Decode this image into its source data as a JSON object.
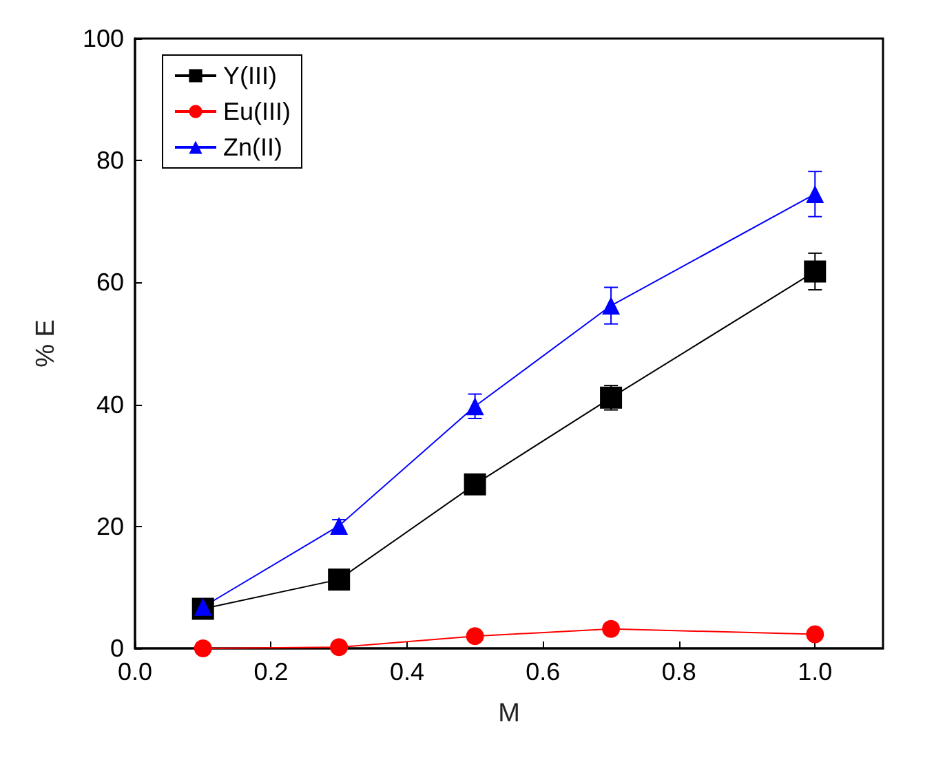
{
  "chart_data": {
    "type": "line",
    "xlabel": "M",
    "ylabel": "% E",
    "x": [
      0.1,
      0.3,
      0.5,
      0.7,
      1.0
    ],
    "series": [
      {
        "name": "Y(III)",
        "color": "#000000",
        "marker": "square",
        "values": [
          6.5,
          11.3,
          26.9,
          41.1,
          61.8
        ],
        "errors": [
          null,
          null,
          null,
          2,
          3
        ]
      },
      {
        "name": "Eu(III)",
        "color": "#ff0000",
        "marker": "circle",
        "values": [
          0,
          0.2,
          2.0,
          3.2,
          2.3
        ]
      },
      {
        "name": "Zn(II)",
        "color": "#0000ff",
        "marker": "triangle",
        "values": [
          6.8,
          20.1,
          39.7,
          56.2,
          74.5
        ],
        "errors": [
          null,
          1,
          2,
          3,
          3.7
        ]
      }
    ],
    "xlim": [
      0,
      1.1
    ],
    "xticks": [
      {
        "value": 0,
        "label": "0.0"
      },
      {
        "value": 0.2,
        "label": "0.2"
      },
      {
        "value": 0.4,
        "label": "0.4"
      },
      {
        "value": 0.6,
        "label": "0.6"
      },
      {
        "value": 0.8,
        "label": "0.8"
      },
      {
        "value": 1.0,
        "label": "1.0"
      }
    ],
    "ylim": [
      0,
      100
    ],
    "yticks": [
      0,
      20,
      40,
      60,
      80,
      100
    ],
    "legend": "top left",
    "grid": false,
    "line_style": "solid"
  }
}
